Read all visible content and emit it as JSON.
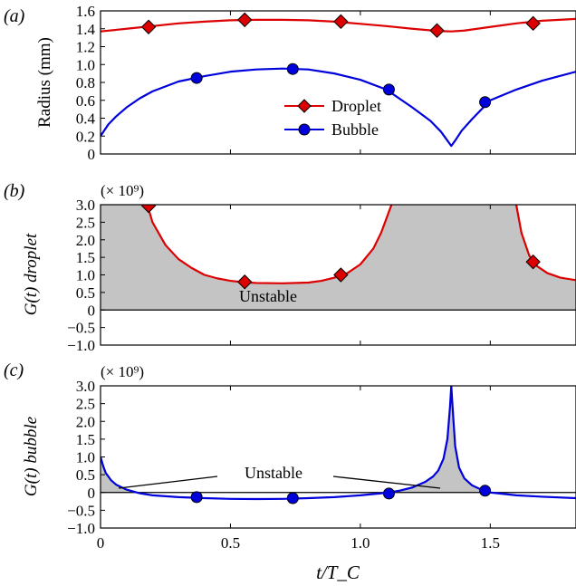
{
  "chart_data": [
    {
      "type": "line",
      "panel_label": "(a)",
      "ylabel": "Radius (mm)",
      "xlim": [
        0,
        1.83
      ],
      "ylim": [
        0,
        1.6
      ],
      "yticks": [
        "0",
        "0.2",
        "0.4",
        "0.6",
        "0.8",
        "1.0",
        "1.2",
        "1.4",
        "1.6"
      ],
      "ytick_values": [
        0,
        0.2,
        0.4,
        0.6,
        0.8,
        1.0,
        1.2,
        1.4,
        1.6
      ],
      "legend": {
        "placement": "center",
        "entries": [
          "Droplet",
          "Bubble"
        ]
      },
      "series": [
        {
          "name": "Droplet",
          "color": "#dd0000",
          "marker": "diamond",
          "x": [
            0,
            0.1,
            0.2,
            0.3,
            0.4,
            0.5,
            0.6,
            0.7,
            0.8,
            0.9,
            1.0,
            1.1,
            1.2,
            1.3,
            1.35,
            1.4,
            1.5,
            1.6,
            1.7,
            1.83
          ],
          "y": [
            1.37,
            1.4,
            1.43,
            1.46,
            1.48,
            1.495,
            1.5,
            1.5,
            1.495,
            1.48,
            1.455,
            1.43,
            1.4,
            1.375,
            1.37,
            1.38,
            1.42,
            1.46,
            1.49,
            1.51
          ],
          "markers_x": [
            0.185,
            0.555,
            0.925,
            1.295,
            1.665
          ],
          "markers_y": [
            1.42,
            1.5,
            1.48,
            1.38,
            1.46
          ]
        },
        {
          "name": "Bubble",
          "color": "#0000dd",
          "marker": "circle",
          "x": [
            0,
            0.03,
            0.06,
            0.1,
            0.15,
            0.2,
            0.3,
            0.4,
            0.5,
            0.6,
            0.7,
            0.8,
            0.9,
            1.0,
            1.1,
            1.2,
            1.27,
            1.31,
            1.335,
            1.35,
            1.365,
            1.39,
            1.43,
            1.5,
            1.6,
            1.7,
            1.83
          ],
          "y": [
            0.2,
            0.33,
            0.42,
            0.52,
            0.62,
            0.7,
            0.81,
            0.87,
            0.92,
            0.945,
            0.955,
            0.945,
            0.9,
            0.83,
            0.72,
            0.52,
            0.37,
            0.25,
            0.15,
            0.09,
            0.15,
            0.26,
            0.39,
            0.6,
            0.72,
            0.82,
            0.92
          ],
          "markers_x": [
            0.37,
            0.74,
            1.11,
            1.48
          ],
          "markers_y": [
            0.85,
            0.95,
            0.72,
            0.58
          ]
        }
      ]
    },
    {
      "type": "line",
      "panel_label": "(b)",
      "ylabel": "G(t) droplet",
      "scale_note": "(× 10⁹)",
      "xlim": [
        0,
        1.83
      ],
      "ylim": [
        -1.0,
        3.0
      ],
      "yticks": [
        "−1.0",
        "−0.5",
        "0",
        "0.5",
        "1.0",
        "1.5",
        "2.0",
        "2.5",
        "3.0"
      ],
      "ytick_values": [
        -1.0,
        -0.5,
        0,
        0.5,
        1.0,
        1.5,
        2.0,
        2.5,
        3.0
      ],
      "annotation": "Unstable",
      "series": [
        {
          "name": "Droplet",
          "color": "#dd0000",
          "marker": "diamond",
          "fill": "#c4c4c4",
          "x": [
            0.18,
            0.2,
            0.25,
            0.3,
            0.35,
            0.4,
            0.45,
            0.5,
            0.55,
            0.6,
            0.7,
            0.8,
            0.85,
            0.9,
            0.95,
            1.0,
            1.05,
            1.08,
            1.1,
            1.12
          ],
          "y": [
            3.0,
            2.5,
            1.85,
            1.45,
            1.2,
            1.0,
            0.9,
            0.83,
            0.79,
            0.77,
            0.76,
            0.78,
            0.83,
            0.92,
            1.05,
            1.3,
            1.75,
            2.2,
            2.6,
            3.0
          ],
          "x2": [
            1.6,
            1.62,
            1.65,
            1.68,
            1.72,
            1.77,
            1.83
          ],
          "y2": [
            3.0,
            2.2,
            1.55,
            1.25,
            1.05,
            0.92,
            0.85
          ],
          "markers_x": [
            0.185,
            0.555,
            0.925,
            1.665
          ],
          "markers_y": [
            2.97,
            0.8,
            1.0,
            1.37
          ]
        }
      ]
    },
    {
      "type": "line",
      "panel_label": "(c)",
      "ylabel": "G(t) bubble",
      "scale_note": "(× 10⁹)",
      "xlabel": "t/T_C",
      "xlim": [
        0,
        1.83
      ],
      "ylim": [
        -1.0,
        3.0
      ],
      "xticks": [
        "0",
        "0.5",
        "1.0",
        "1.5"
      ],
      "xtick_values": [
        0,
        0.5,
        1.0,
        1.5
      ],
      "yticks": [
        "−1.0",
        "−0.5",
        "0",
        "0.5",
        "1.0",
        "1.5",
        "2.0",
        "2.5",
        "3.0"
      ],
      "ytick_values": [
        -1.0,
        -0.5,
        0,
        0.5,
        1.0,
        1.5,
        2.0,
        2.5,
        3.0
      ],
      "annotation": "Unstable",
      "series": [
        {
          "name": "Bubble",
          "color": "#0000dd",
          "marker": "circle",
          "fill": "#c4c4c4",
          "x": [
            0.0,
            0.01,
            0.02,
            0.04,
            0.06,
            0.1,
            0.15,
            0.2,
            0.3,
            0.4,
            0.5,
            0.6,
            0.7,
            0.8,
            0.9,
            1.0,
            1.1,
            1.15,
            1.2,
            1.25,
            1.28,
            1.3,
            1.32,
            1.335,
            1.345,
            1.35,
            1.355,
            1.365,
            1.38,
            1.4,
            1.43,
            1.46,
            1.5,
            1.6,
            1.7,
            1.83
          ],
          "y": [
            1.0,
            0.75,
            0.55,
            0.35,
            0.22,
            0.08,
            -0.02,
            -0.08,
            -0.13,
            -0.16,
            -0.18,
            -0.185,
            -0.18,
            -0.16,
            -0.13,
            -0.08,
            -0.01,
            0.05,
            0.14,
            0.3,
            0.45,
            0.62,
            0.95,
            1.5,
            2.4,
            3.0,
            2.4,
            1.3,
            0.7,
            0.4,
            0.2,
            0.1,
            0.0,
            -0.08,
            -0.12,
            -0.16
          ],
          "markers_x": [
            0.37,
            0.74,
            1.11,
            1.48
          ],
          "markers_y": [
            -0.13,
            -0.16,
            -0.03,
            0.05
          ]
        }
      ]
    }
  ]
}
